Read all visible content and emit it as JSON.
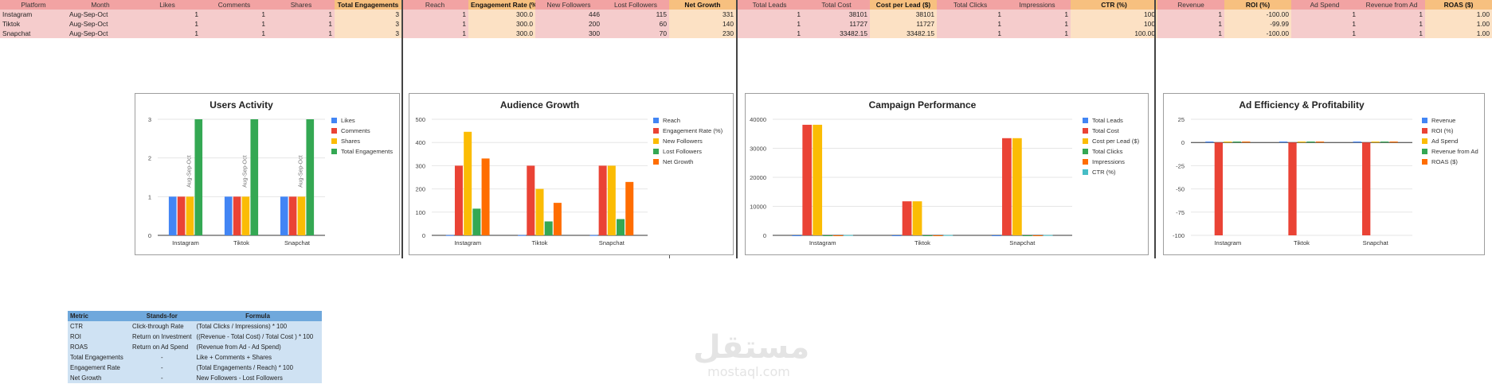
{
  "sheet": {
    "header": [
      "Platform",
      "Month",
      "Likes",
      "Comments",
      "Shares",
      "Total Engagements",
      "Reach",
      "Engagement Rate (%)",
      "New Followers",
      "Lost Followers",
      "Net Growth",
      "Total Leads",
      "Total Cost",
      "Cost per Lead ($)",
      "Total Clicks",
      "Impressions",
      "CTR (%)",
      "Revenue",
      "ROI (%)",
      "Ad Spend",
      "Revenue from Ad",
      "ROAS ($)"
    ],
    "rows": [
      [
        "Instagram",
        "Aug-Sep-Oct",
        "1",
        "1",
        "1",
        "3",
        "1",
        "300.0",
        "446",
        "115",
        "331",
        "1",
        "38101",
        "38101",
        "1",
        "1",
        "100",
        "1",
        "-100.00",
        "1",
        "1",
        "1.00"
      ],
      [
        "Tiktok",
        "Aug-Sep-Oct",
        "1",
        "1",
        "1",
        "3",
        "1",
        "300.0",
        "200",
        "60",
        "140",
        "1",
        "11727",
        "11727",
        "1",
        "1",
        "100",
        "1",
        "-99.99",
        "1",
        "1",
        "1.00"
      ],
      [
        "Snapchat",
        "Aug-Sep-Oct",
        "1",
        "1",
        "1",
        "3",
        "1",
        "300.0",
        "300",
        "70",
        "230",
        "1",
        "33482.15",
        "33482.15",
        "1",
        "1",
        "100.00",
        "1",
        "-100.00",
        "1",
        "1",
        "1.00"
      ]
    ]
  },
  "colors": {
    "blue": "#4285f4",
    "red": "#ea4335",
    "yellow": "#fbbc04",
    "green": "#34a853",
    "orange": "#ff6d01",
    "teal": "#46bdc6",
    "header_pink": "#f2a3a3",
    "header_orange": "#f7c07f",
    "row_pink": "#f5cccc",
    "row_orange": "#fce1c4",
    "formula_header": "#6fa8dc",
    "formula_body": "#cfe2f3"
  },
  "chart_data": [
    {
      "type": "bar",
      "title": "Users Activity",
      "categories": [
        "Instagram",
        "Tiktok",
        "Snapchat"
      ],
      "series": [
        {
          "name": "Likes",
          "values": [
            1,
            1,
            1
          ],
          "color": "#4285f4"
        },
        {
          "name": "Comments",
          "values": [
            1,
            1,
            1
          ],
          "color": "#ea4335"
        },
        {
          "name": "Shares",
          "values": [
            1,
            1,
            1
          ],
          "color": "#fbbc04"
        },
        {
          "name": "Total Engagements",
          "values": [
            3,
            3,
            3
          ],
          "color": "#34a853"
        }
      ],
      "ylim": [
        0,
        3
      ],
      "yticks": [
        0,
        1,
        2,
        3
      ],
      "bar_annotation": "Aug-Sep-Oct",
      "legend": "right",
      "grid": true
    },
    {
      "type": "bar",
      "title": "Audience Growth",
      "categories": [
        "Instagram",
        "Tiktok",
        "Snapchat"
      ],
      "series": [
        {
          "name": "Reach",
          "values": [
            1,
            1,
            1
          ],
          "color": "#4285f4"
        },
        {
          "name": "Engagement Rate (%)",
          "values": [
            300,
            300,
            300
          ],
          "color": "#ea4335"
        },
        {
          "name": "New Followers",
          "values": [
            446,
            200,
            300
          ],
          "color": "#fbbc04"
        },
        {
          "name": "Lost Followers",
          "values": [
            115,
            60,
            70
          ],
          "color": "#34a853"
        },
        {
          "name": "Net Growth",
          "values": [
            331,
            140,
            230
          ],
          "color": "#ff6d01"
        }
      ],
      "ylim": [
        0,
        500
      ],
      "yticks": [
        0,
        100,
        200,
        300,
        400,
        500
      ],
      "legend": "right",
      "grid": true
    },
    {
      "type": "bar",
      "title": "Campaign Performance",
      "categories": [
        "Instagram",
        "Tiktok",
        "Snapchat"
      ],
      "series": [
        {
          "name": "Total Leads",
          "values": [
            1,
            1,
            1
          ],
          "color": "#4285f4"
        },
        {
          "name": "Total Cost",
          "values": [
            38101,
            11727,
            33482.15
          ],
          "color": "#ea4335"
        },
        {
          "name": "Cost per Lead ($)",
          "values": [
            38101,
            11727,
            33482.15
          ],
          "color": "#fbbc04"
        },
        {
          "name": "Total Clicks",
          "values": [
            1,
            1,
            1
          ],
          "color": "#34a853"
        },
        {
          "name": "Impressions",
          "values": [
            1,
            1,
            1
          ],
          "color": "#ff6d01"
        },
        {
          "name": "CTR (%)",
          "values": [
            100,
            100,
            100
          ],
          "color": "#46bdc6"
        }
      ],
      "ylim": [
        0,
        40000
      ],
      "yticks": [
        0,
        10000,
        20000,
        30000,
        40000
      ],
      "legend": "right",
      "grid": true
    },
    {
      "type": "bar",
      "title": "Ad Efficiency & Profitability",
      "categories": [
        "Instagram",
        "Tiktok",
        "Snapchat"
      ],
      "series": [
        {
          "name": "Revenue",
          "values": [
            1,
            1,
            1
          ],
          "color": "#4285f4"
        },
        {
          "name": "ROI (%)",
          "values": [
            -100,
            -99.99,
            -100
          ],
          "color": "#ea4335"
        },
        {
          "name": "Ad Spend",
          "values": [
            1,
            1,
            1
          ],
          "color": "#fbbc04"
        },
        {
          "name": "Revenue from Ad",
          "values": [
            1,
            1,
            1
          ],
          "color": "#34a853"
        },
        {
          "name": "ROAS ($)",
          "values": [
            1,
            1,
            1
          ],
          "color": "#ff6d01"
        }
      ],
      "ylim": [
        -100,
        25
      ],
      "yticks": [
        25,
        0,
        -25,
        -50,
        -75,
        -100
      ],
      "legend": "right",
      "grid": true
    }
  ],
  "formulas": {
    "header": [
      "Metric",
      "Stands-for",
      "Formula"
    ],
    "rows": [
      [
        "CTR",
        "Click-through Rate",
        "(Total Clicks / Impressions) * 100"
      ],
      [
        "ROI",
        "Return on Investment",
        "((Revenue - Total Cost) / Total Cost ) * 100"
      ],
      [
        "ROAS",
        "Return on Ad Spend",
        "(Revenue from Ad - Ad Spend)"
      ],
      [
        "Total Engagements",
        "-",
        "Like + Comments + Shares"
      ],
      [
        "Engagement Rate",
        "-",
        "(Total Engagements / Reach) * 100"
      ],
      [
        "Net Growth",
        "-",
        "New Followers - Lost Followers"
      ]
    ]
  },
  "watermark": {
    "arabic": "مستقل",
    "latin": "mostaql.com"
  }
}
